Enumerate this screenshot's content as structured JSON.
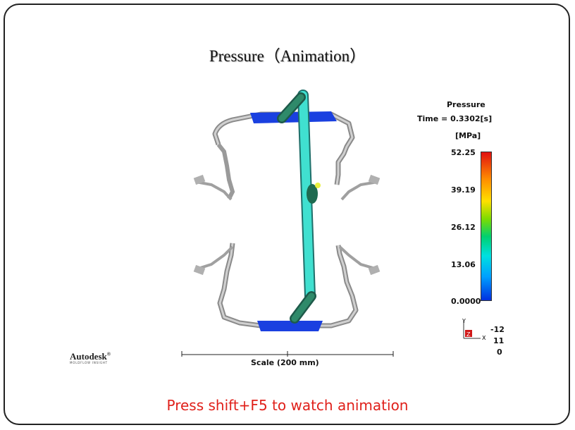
{
  "slide": {
    "title": "Pressure（Animation）",
    "instruction": "Press shift+F5 to watch animation"
  },
  "legend": {
    "title": "Pressure",
    "time": "Time = 0.3302[s]",
    "unit": "[MPa]",
    "ticks": [
      "52.25",
      "39.19",
      "26.12",
      "13.06",
      "0.0000"
    ],
    "gradient_colors": [
      "#e01010",
      "#ff8c00",
      "#ffe000",
      "#7ddc00",
      "#00d070",
      "#00e0e0",
      "#00a0ff",
      "#0030e0"
    ]
  },
  "scale_bar": {
    "label": "Scale (200 mm)"
  },
  "axis_triad": {
    "y_label": "Y",
    "z_label": "Z",
    "x_label": "X",
    "values": [
      "-12",
      "11",
      "0"
    ]
  },
  "branding": {
    "name": "Autodesk",
    "mark": "®",
    "subline": "MOLDFLOW INSIGHT"
  },
  "colors": {
    "part_gray": "#a8a8a8",
    "runner_cyan": "#40e0d0",
    "filled_blue": "#1a40e0",
    "instruction_red": "#e0201a"
  }
}
